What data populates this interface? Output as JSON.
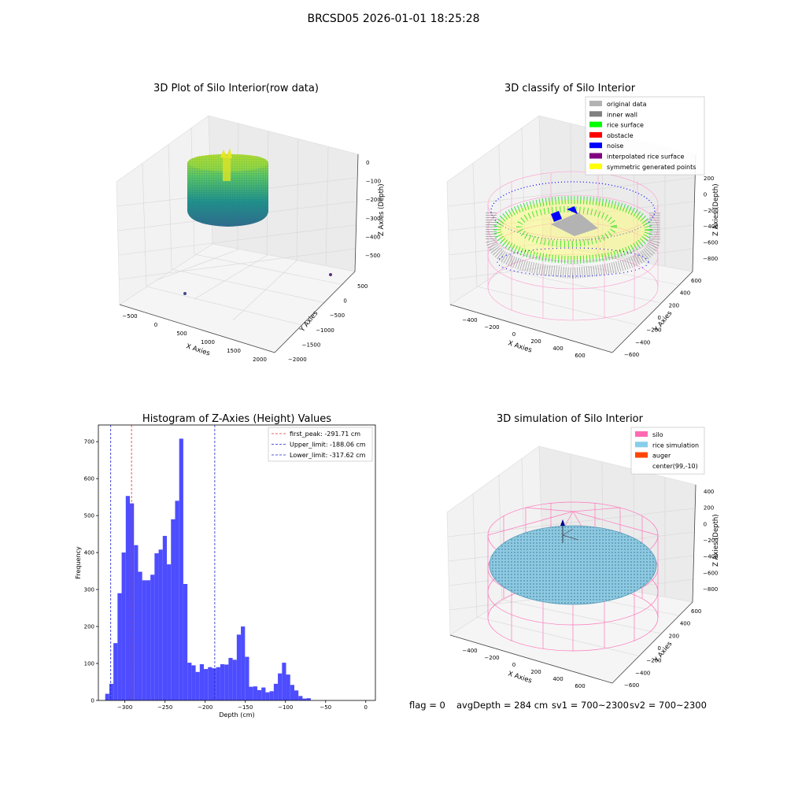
{
  "suptitle": "BRCSD05 2026-01-01 18:25:28",
  "footer": {
    "flag": "flag = 0",
    "avg": "avgDepth = 284 cm",
    "sv1": "sv1 = 700~2300",
    "sv2": "sv2 = 700~2300"
  },
  "chart_data": [
    {
      "type": "scatter",
      "title": "3D Plot of Silo Interior(row data)",
      "xlabel": "X Axies",
      "ylabel": "Y Axies",
      "zlabel": "Z Axies (Depth)",
      "x_ticks": [
        "−500",
        "0",
        "500",
        "1000",
        "1500",
        "2000"
      ],
      "y_ticks": [
        "500",
        "0",
        "−500",
        "−1000",
        "−1500",
        "−2000"
      ],
      "z_ticks": [
        "0",
        "−100",
        "−200",
        "−300",
        "−400",
        "−500"
      ],
      "colormap": "viridis",
      "outliers": [
        {
          "x": 1700,
          "y": 800,
          "z": -300,
          "color": "#5b2e82"
        },
        {
          "x": 500,
          "y": -1800,
          "z": -600,
          "color": "#3e4a8c"
        }
      ]
    },
    {
      "type": "scatter",
      "title": "3D classify of Silo Interior",
      "xlabel": "X Axies",
      "ylabel": "Y Axies",
      "zlabel": "Z Axies (Depth)",
      "x_ticks": [
        "−400",
        "−200",
        "0",
        "200",
        "400",
        "600"
      ],
      "y_ticks": [
        "600",
        "400",
        "200",
        "0",
        "−200",
        "−400",
        "−600"
      ],
      "z_ticks": [
        "200",
        "0",
        "−200",
        "−400",
        "−600",
        "−800"
      ],
      "legend_position": "top-right",
      "legend": [
        {
          "label": "original data",
          "color": "#b3b3b3"
        },
        {
          "label": "inner wall",
          "color": "#808080"
        },
        {
          "label": "rice surface",
          "color": "#00ff00"
        },
        {
          "label": "obstacle",
          "color": "#ff0000"
        },
        {
          "label": "noise",
          "color": "#0000ff"
        },
        {
          "label": "interpolated rice surface",
          "color": "#800080"
        },
        {
          "label": "symmetric generated points",
          "color": "#ffff00"
        }
      ]
    },
    {
      "type": "bar",
      "title": "Histogram of Z-Axies (Height) Values",
      "xlabel": "Depth (cm)",
      "ylabel": "Frequency",
      "xlim": [
        -333,
        12
      ],
      "ylim": [
        0,
        745
      ],
      "x_ticks": [
        -300,
        -250,
        -200,
        -150,
        -100,
        -50,
        0
      ],
      "x_tick_labels": [
        "−300",
        "−250",
        "−200",
        "−150",
        "−100",
        "−50",
        "0"
      ],
      "y_ticks": [
        0,
        100,
        200,
        300,
        400,
        500,
        600,
        700
      ],
      "y_tick_labels": [
        "0",
        "100",
        "200",
        "300",
        "400",
        "500",
        "600",
        "700"
      ],
      "bar_color": "#4d4dff",
      "bin_start": -324.5,
      "bin_width": 5.12,
      "values": [
        18,
        45,
        155,
        290,
        400,
        553,
        533,
        420,
        348,
        325,
        325,
        340,
        398,
        408,
        445,
        368,
        490,
        540,
        708,
        315,
        102,
        95,
        77,
        98,
        85,
        90,
        87,
        90,
        98,
        97,
        115,
        110,
        178,
        200,
        118,
        37,
        38,
        28,
        35,
        22,
        25,
        45,
        73,
        102,
        70,
        42,
        27,
        12,
        5,
        6
      ],
      "lines": [
        {
          "label": "first_peak: -291.71 cm",
          "x": -291.71,
          "color": "#e03030"
        },
        {
          "label": "Upper_limit: -188.06 cm",
          "x": -188.06,
          "color": "#2020cc"
        },
        {
          "label": "Lower_limit: -317.62 cm",
          "x": -317.62,
          "color": "#2020cc"
        }
      ],
      "legend_position": "top-right"
    },
    {
      "type": "scatter",
      "title": "3D simulation of Silo Interior",
      "xlabel": "X Axies",
      "ylabel": "Y Axies",
      "zlabel": "Z Axies (Depth)",
      "x_ticks": [
        "−400",
        "−200",
        "0",
        "200",
        "400",
        "600"
      ],
      "y_ticks": [
        "600",
        "400",
        "200",
        "0",
        "−200",
        "−400",
        "−600"
      ],
      "z_ticks": [
        "400",
        "200",
        "0",
        "−200",
        "−400",
        "−600",
        "−800"
      ],
      "legend_position": "top-right",
      "legend": [
        {
          "label": "silo",
          "color": "#ff69b4"
        },
        {
          "label": "rice simulation",
          "color": "#87ceeb"
        },
        {
          "label": "auger",
          "color": "#ff4500"
        },
        {
          "label": "center(99,-10)",
          "color": "#ffffff"
        }
      ]
    }
  ]
}
